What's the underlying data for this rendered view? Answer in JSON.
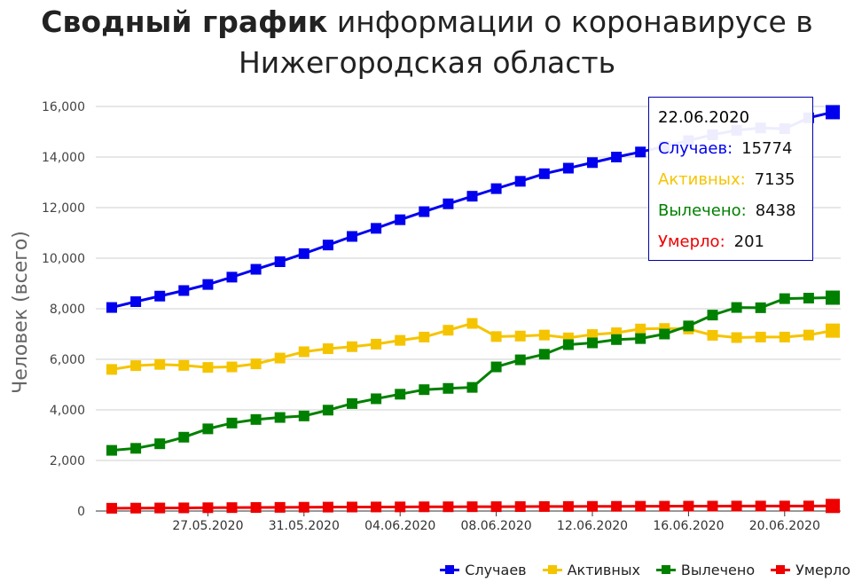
{
  "title": {
    "bold": "Сводный график",
    "rest": " информации о коронавирусе в Нижегородская область"
  },
  "chart_data": {
    "type": "line",
    "ylabel": "Человек (всего)",
    "ylim": [
      0,
      16000
    ],
    "yticks": [
      0,
      2000,
      4000,
      6000,
      8000,
      10000,
      12000,
      14000,
      16000
    ],
    "ytick_labels": [
      "0",
      "2,000",
      "4,000",
      "6,000",
      "8,000",
      "10,000",
      "12,000",
      "14,000",
      "16,000"
    ],
    "grid": true,
    "legend_position": "bottom-right",
    "x": [
      "23.05.2020",
      "24.05.2020",
      "25.05.2020",
      "26.05.2020",
      "27.05.2020",
      "28.05.2020",
      "29.05.2020",
      "30.05.2020",
      "31.05.2020",
      "01.06.2020",
      "02.06.2020",
      "03.06.2020",
      "04.06.2020",
      "05.06.2020",
      "06.06.2020",
      "07.06.2020",
      "08.06.2020",
      "09.06.2020",
      "10.06.2020",
      "11.06.2020",
      "12.06.2020",
      "13.06.2020",
      "14.06.2020",
      "15.06.2020",
      "16.06.2020",
      "17.06.2020",
      "18.06.2020",
      "19.06.2020",
      "20.06.2020",
      "21.06.2020",
      "22.06.2020"
    ],
    "xticks": [
      "27.05.2020",
      "31.05.2020",
      "04.06.2020",
      "08.06.2020",
      "12.06.2020",
      "16.06.2020",
      "20.06.2020"
    ],
    "series": [
      {
        "name": "Случаев",
        "color": "#0000ee",
        "values": [
          8050,
          8280,
          8500,
          8720,
          8960,
          9250,
          9560,
          9860,
          10180,
          10520,
          10860,
          11180,
          11520,
          11840,
          12150,
          12450,
          12750,
          13040,
          13340,
          13560,
          13780,
          14000,
          14200,
          14420,
          14650,
          14880,
          15060,
          15150,
          15120,
          15550,
          15774
        ]
      },
      {
        "name": "Активных",
        "color": "#f5c400",
        "values": [
          5600,
          5750,
          5800,
          5760,
          5680,
          5700,
          5820,
          6050,
          6300,
          6420,
          6500,
          6600,
          6750,
          6880,
          7150,
          7420,
          6900,
          6920,
          6960,
          6850,
          6980,
          7050,
          7200,
          7220,
          7200,
          6950,
          6860,
          6880,
          6880,
          6960,
          7135
        ]
      },
      {
        "name": "Вылечено",
        "color": "#008000",
        "values": [
          2400,
          2480,
          2660,
          2920,
          3250,
          3480,
          3620,
          3700,
          3760,
          3990,
          4250,
          4440,
          4620,
          4800,
          4850,
          4890,
          5700,
          5980,
          6200,
          6580,
          6650,
          6780,
          6820,
          7000,
          7320,
          7750,
          8050,
          8040,
          8400,
          8420,
          8438
        ]
      },
      {
        "name": "Умерло",
        "color": "#ee0000",
        "values": [
          110,
          115,
          120,
          125,
          130,
          135,
          140,
          145,
          150,
          155,
          158,
          160,
          163,
          166,
          168,
          170,
          172,
          175,
          178,
          180,
          183,
          185,
          188,
          190,
          192,
          194,
          196,
          197,
          198,
          199,
          201
        ]
      }
    ],
    "tooltip": {
      "date": "22.06.2020",
      "rows": [
        {
          "label": "Случаев:",
          "value": "15774",
          "color": "#0000ee"
        },
        {
          "label": "Активных:",
          "value": "7135",
          "color": "#f5c400"
        },
        {
          "label": "Вылечено:",
          "value": "8438",
          "color": "#008000"
        },
        {
          "label": "Умерло:",
          "value": "201",
          "color": "#ee0000"
        }
      ]
    }
  }
}
